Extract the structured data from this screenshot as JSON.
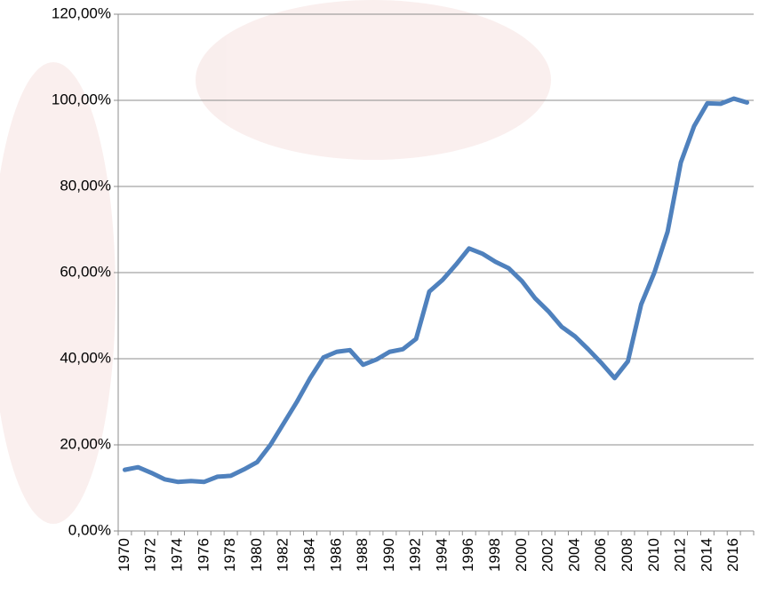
{
  "chart_data": {
    "type": "line",
    "categories": [
      "1970",
      null,
      "1972",
      null,
      "1974",
      null,
      "1976",
      null,
      "1978",
      null,
      "1980",
      null,
      "1982",
      null,
      "1984",
      null,
      "1986",
      null,
      "1988",
      null,
      "1990",
      null,
      "1992",
      null,
      "1994",
      null,
      "1996",
      null,
      "1998",
      null,
      "2000",
      null,
      "2002",
      null,
      "2004",
      null,
      "2006",
      null,
      "2008",
      null,
      "2010",
      null,
      "2012",
      null,
      "2014",
      null,
      "2016",
      null
    ],
    "series": [
      {
        "color": "#4f81bd",
        "values": [
          14.2,
          14.8,
          13.5,
          12.0,
          11.4,
          11.6,
          11.4,
          12.6,
          12.8,
          14.3,
          16.0,
          20.0,
          25.0,
          30.0,
          35.5,
          40.3,
          41.6,
          42.0,
          38.6,
          39.8,
          41.6,
          42.2,
          44.6,
          55.6,
          58.3,
          61.8,
          65.6,
          64.4,
          62.5,
          61.0,
          58.0,
          54.0,
          51.0,
          47.4,
          45.2,
          42.2,
          39.0,
          35.5,
          39.4,
          52.6,
          60.0,
          69.5,
          85.6,
          94.0,
          99.3,
          99.2,
          100.4,
          99.5
        ]
      }
    ],
    "ylim": [
      0,
      120
    ],
    "yticks": [
      {
        "value": 0,
        "label": "0,00%"
      },
      {
        "value": 20,
        "label": "20,00%"
      },
      {
        "value": 40,
        "label": "40,00%"
      },
      {
        "value": 60,
        "label": "60,00%"
      },
      {
        "value": 80,
        "label": "80,00%"
      },
      {
        "value": 100,
        "label": "100,00%"
      },
      {
        "value": 120,
        "label": "120,00%"
      }
    ],
    "grid": true
  }
}
